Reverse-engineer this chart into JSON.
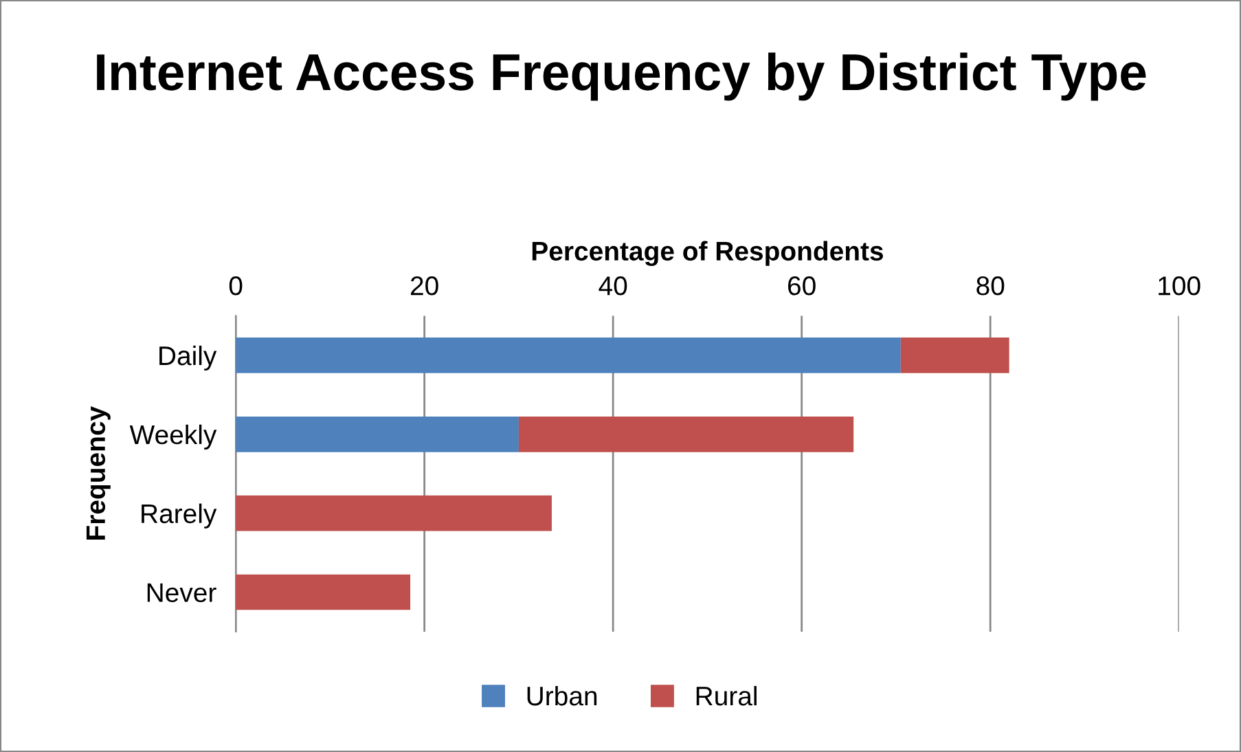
{
  "chart_data": {
    "type": "bar",
    "orientation": "horizontal",
    "stacked": true,
    "title": "Internet Access Frequency by District Type",
    "xlabel": "Percentage of Respondents",
    "ylabel": "Frequency",
    "categories": [
      "Daily",
      "Weekly",
      "Rarely",
      "Never"
    ],
    "series": [
      {
        "name": "Urban",
        "color": "#4f81bd",
        "values": [
          70.5,
          30,
          0,
          0
        ]
      },
      {
        "name": "Rural",
        "color": "#c0504d",
        "values": [
          11.5,
          35.5,
          33.5,
          18.5
        ]
      }
    ],
    "xlim": [
      0,
      100
    ],
    "xticks": [
      0,
      20,
      40,
      60,
      80,
      100
    ],
    "grid": "x",
    "legend": "bottom"
  }
}
